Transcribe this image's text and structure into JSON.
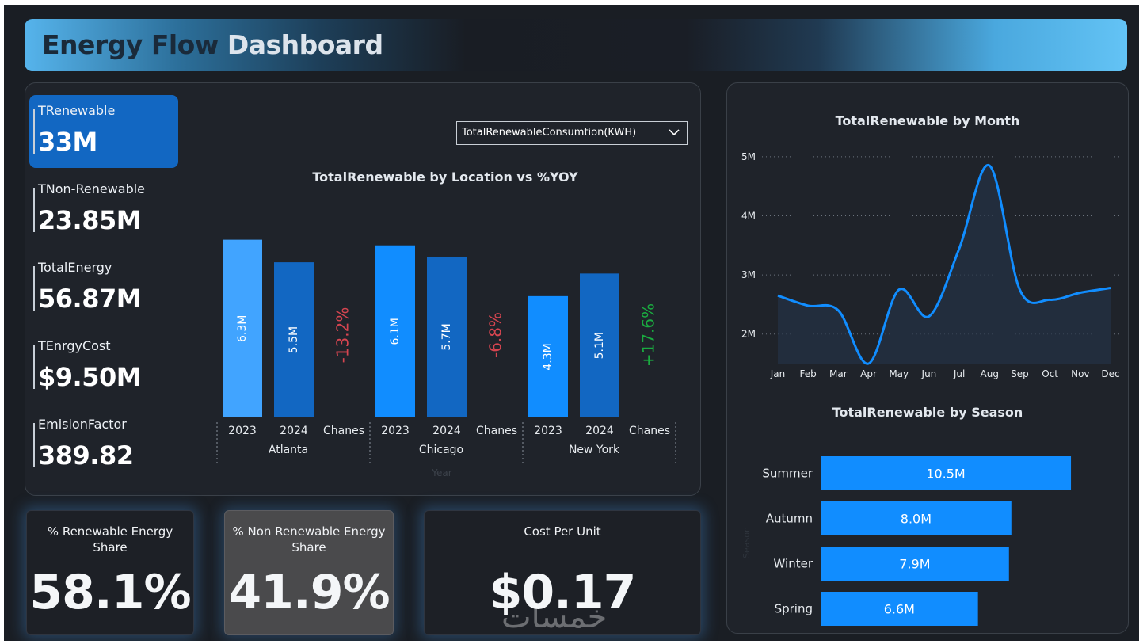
{
  "header": {
    "title_part1": "Energy Flow",
    "title_part2": "Dashboard"
  },
  "kpis": [
    {
      "label": "TRenewable",
      "value": "33M"
    },
    {
      "label": "TNon-Renewable",
      "value": "23.85M"
    },
    {
      "label": "TotalEnergy",
      "value": "56.87M"
    },
    {
      "label": "TEnrgyCost",
      "value": "$9.50M"
    },
    {
      "label": "EmisionFactor",
      "value": "389.82"
    }
  ],
  "dropdown": {
    "selected": "TotalRenewableConsumtion(KWH)"
  },
  "cards": {
    "renewable_share": {
      "label": "% Renewable Energy Share",
      "value": "58.1%"
    },
    "non_renewable_share": {
      "label": "% Non Renewable Energy Share",
      "value": "41.9%"
    },
    "cost_per_unit": {
      "label": "Cost Per Unit",
      "value": "$0.17"
    }
  },
  "watermark": "خمسات",
  "colors": {
    "accent": "#118dff",
    "bar_2023_atlanta": "#41a4ff",
    "bar_2024": "#1267c2",
    "negative": "#d64550",
    "positive": "#1aab40"
  },
  "chart_data": [
    {
      "type": "bar",
      "title": "TotalRenewable by Location vs %YOY",
      "xlabel": "Year",
      "groups": [
        {
          "location": "Atlanta",
          "bars": [
            {
              "year": "2023",
              "value": 6.3,
              "label": "6.3M"
            },
            {
              "year": "2024",
              "value": 5.5,
              "label": "5.5M"
            }
          ],
          "change_label": "Chanes",
          "change": "-13.2%"
        },
        {
          "location": "Chicago",
          "bars": [
            {
              "year": "2023",
              "value": 6.1,
              "label": "6.1M"
            },
            {
              "year": "2024",
              "value": 5.7,
              "label": "5.7M"
            }
          ],
          "change_label": "Chanes",
          "change": "-6.8%"
        },
        {
          "location": "New York",
          "bars": [
            {
              "year": "2023",
              "value": 4.3,
              "label": "4.3M"
            },
            {
              "year": "2024",
              "value": 5.1,
              "label": "5.1M"
            }
          ],
          "change_label": "Chanes",
          "change": "+17.6%"
        }
      ],
      "unit": "M"
    },
    {
      "type": "line",
      "title": "TotalRenewable by Month",
      "x": [
        "Jan",
        "Feb",
        "Mar",
        "Apr",
        "May",
        "Jun",
        "Jul",
        "Aug",
        "Sep",
        "Oct",
        "Nov",
        "Dec"
      ],
      "values": [
        2.65,
        2.48,
        2.4,
        1.5,
        2.75,
        2.3,
        3.45,
        4.85,
        2.75,
        2.58,
        2.7,
        2.78
      ],
      "y_ticks": [
        "2M",
        "3M",
        "4M",
        "5M"
      ],
      "y_tick_values": [
        2,
        3,
        4,
        5
      ],
      "ylim": [
        1.5,
        5.2
      ],
      "unit": "M",
      "grid": true
    },
    {
      "type": "bar",
      "orientation": "horizontal",
      "title": "TotalRenewable by Season",
      "ylabel": "Season",
      "categories": [
        "Summer",
        "Autumn",
        "Winter",
        "Spring"
      ],
      "values": [
        10.5,
        8.0,
        7.9,
        6.6
      ],
      "labels": [
        "10.5M",
        "8.0M",
        "7.9M",
        "6.6M"
      ],
      "xlim": [
        0,
        12
      ]
    }
  ]
}
